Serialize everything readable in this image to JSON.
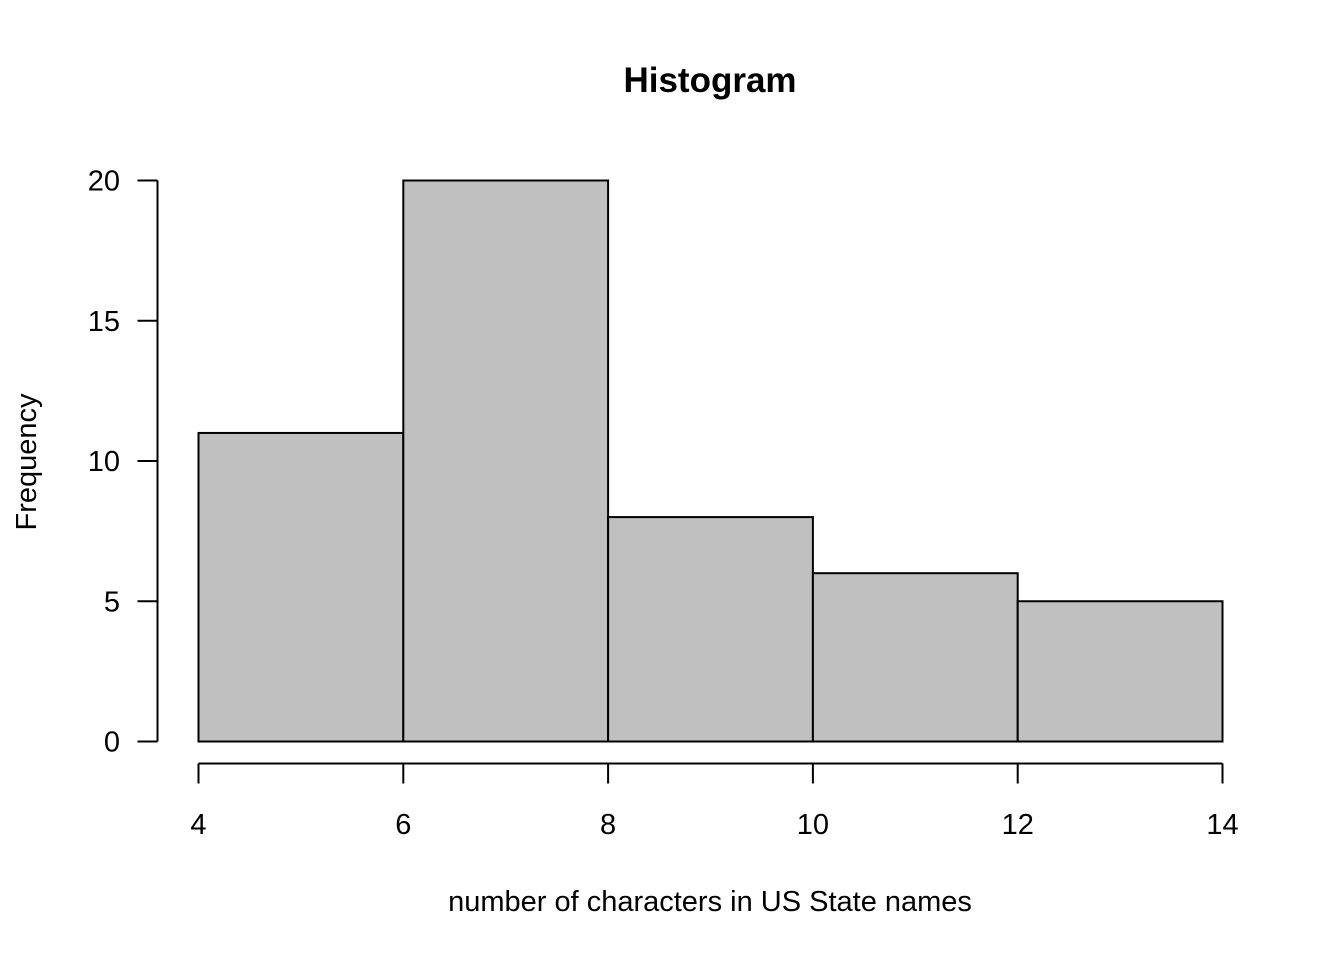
{
  "chart_data": {
    "type": "bar",
    "title": "Histogram",
    "xlabel": "number of characters in US State names",
    "ylabel": "Frequency",
    "bins": [
      {
        "from": 4,
        "to": 6,
        "count": 11
      },
      {
        "from": 6,
        "to": 8,
        "count": 20
      },
      {
        "from": 8,
        "to": 10,
        "count": 8
      },
      {
        "from": 10,
        "to": 12,
        "count": 6
      },
      {
        "from": 12,
        "to": 14,
        "count": 5
      }
    ],
    "xlim": [
      4,
      14
    ],
    "ylim": [
      0,
      20
    ],
    "x_ticks": [
      "4",
      "6",
      "8",
      "10",
      "12",
      "14"
    ],
    "y_ticks": [
      "0",
      "5",
      "10",
      "15",
      "20"
    ],
    "bar_fill": "#c0c0c0",
    "bar_stroke": "#000000",
    "grid": false,
    "legend": "none"
  }
}
